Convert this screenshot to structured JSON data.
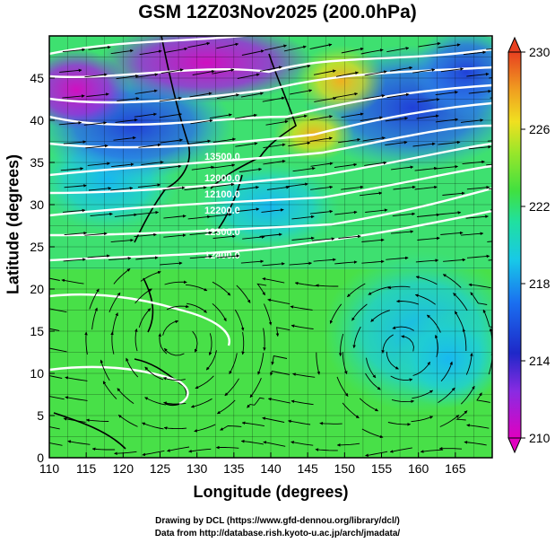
{
  "title": "GSM 12Z03Nov2025 (200.0hPa)",
  "x_axis": {
    "label": "Longitude (degrees)",
    "ticks": [
      "110",
      "115",
      "120",
      "125",
      "130",
      "135",
      "140",
      "145",
      "150",
      "155",
      "160",
      "165"
    ]
  },
  "y_axis": {
    "label": "Latitude  (degrees)",
    "ticks": [
      "0",
      "5",
      "10",
      "15",
      "20",
      "25",
      "30",
      "35",
      "40",
      "45"
    ]
  },
  "colorbar": {
    "ticks": [
      "210",
      "214",
      "218",
      "222",
      "226",
      "230"
    ],
    "colors": [
      "#e000c0",
      "#8a2be2",
      "#1e28c8",
      "#1a6ff0",
      "#18c8e8",
      "#20e0a0",
      "#40e040",
      "#9ae62a",
      "#f0e020",
      "#f0a020",
      "#e84020"
    ]
  },
  "contour_labels": [
    "13500.0",
    "12000.0",
    "12100.0",
    "12200.0",
    "12300.0",
    "12400.0"
  ],
  "credits": {
    "line1": "Drawing by DCL (https://www.gfd-dennou.org/library/dcl/)",
    "line2": "Data from http://database.rish.kyoto-u.ac.jp/arch/jmadata/"
  }
}
